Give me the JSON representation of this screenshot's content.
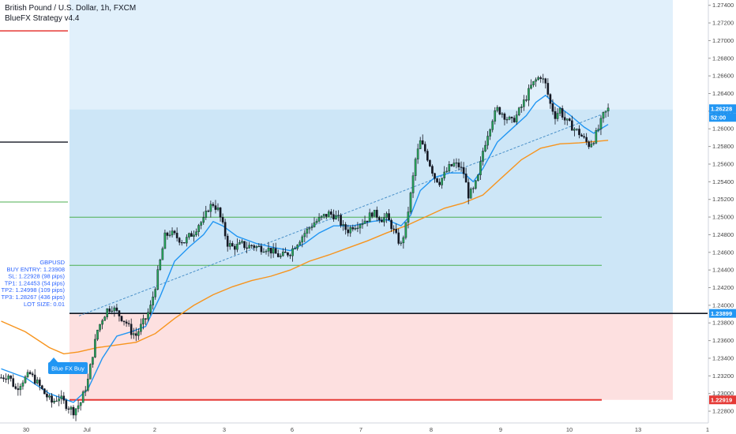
{
  "header": {
    "symbol_line": "British Pound / U.S. Dollar, 1h, FXCM",
    "strategy": "BlueFX Strategy v4.4"
  },
  "colors": {
    "candle_up": "#26a65b",
    "candle_down": "#131722",
    "ema_fast": "#2196f3",
    "ema_slow": "#f7941d",
    "zone_profit": "#cde6f7",
    "zone_profit_top": "#e1f0fb",
    "zone_loss": "#fde0e0",
    "entry_line": "#131722",
    "sl_line": "#e53935",
    "tp_line": "#4caf50",
    "info_text": "#2962ff",
    "buy_label": "#2196f3"
  },
  "info_box": {
    "lines": [
      "GBPUSD",
      "BUY ENTRY: 1.23908",
      "SL: 1.22928 (98 pips)",
      "TP1: 1.24453 (54 pips)",
      "TP2: 1.24998 (109 pips)",
      "TP3: 1.28267 (436 pips)",
      "LOT SIZE: 0.01"
    ]
  },
  "buy_label": "Blue FX Buy",
  "price_tags": {
    "current": "1.26228",
    "countdown": "52:00",
    "entry": "1.23899",
    "stop": "1.22919"
  },
  "chart_data": {
    "type": "candlestick",
    "title": "British Pound / U.S. Dollar, 1h, FXCM",
    "ylim": [
      1.2272,
      1.2746
    ],
    "y_ticks": [
      "1.22800",
      "1.23000",
      "1.23200",
      "1.23400",
      "1.23600",
      "1.23800",
      "1.24000",
      "1.24200",
      "1.24400",
      "1.24600",
      "1.24800",
      "1.25000",
      "1.25200",
      "1.25400",
      "1.25600",
      "1.25800",
      "1.26000",
      "1.26200",
      "1.26400",
      "1.26600",
      "1.26800",
      "1.27000",
      "1.27200",
      "1.27400"
    ],
    "x_tick_labels": [
      "30",
      "Jul",
      "2",
      "3",
      "6",
      "7",
      "8",
      "9",
      "10",
      "13",
      "1"
    ],
    "levels": {
      "entry": 1.23908,
      "stop_loss": 1.22928,
      "tp1": 1.24453,
      "tp2": 1.24998,
      "tp3": 1.28267,
      "left_red": 1.2711,
      "left_black": 1.2585,
      "left_green": 1.2517
    },
    "price_path": [
      [
        0,
        1.2318
      ],
      [
        3,
        1.2321
      ],
      [
        6,
        1.2305
      ],
      [
        9,
        1.2315
      ],
      [
        12,
        1.2322
      ],
      [
        15,
        1.2312
      ],
      [
        18,
        1.23
      ],
      [
        21,
        1.229
      ],
      [
        24,
        1.2296
      ],
      [
        27,
        1.2287
      ],
      [
        30,
        1.228
      ],
      [
        33,
        1.229
      ],
      [
        36,
        1.2315
      ],
      [
        38,
        1.2345
      ],
      [
        40,
        1.2372
      ],
      [
        42,
        1.2385
      ],
      [
        44,
        1.2395
      ],
      [
        46,
        1.2398
      ],
      [
        48,
        1.2392
      ],
      [
        50,
        1.2386
      ],
      [
        52,
        1.238
      ],
      [
        54,
        1.237
      ],
      [
        56,
        1.2366
      ],
      [
        58,
        1.2376
      ],
      [
        60,
        1.2385
      ],
      [
        62,
        1.2398
      ],
      [
        64,
        1.2422
      ],
      [
        66,
        1.245
      ],
      [
        68,
        1.2478
      ],
      [
        70,
        1.2482
      ],
      [
        72,
        1.2479
      ],
      [
        74,
        1.2475
      ],
      [
        76,
        1.2472
      ],
      [
        78,
        1.2478
      ],
      [
        80,
        1.2483
      ],
      [
        82,
        1.2492
      ],
      [
        84,
        1.2496
      ],
      [
        86,
        1.251
      ],
      [
        88,
        1.2515
      ],
      [
        90,
        1.2508
      ],
      [
        92,
        1.249
      ],
      [
        94,
        1.247
      ],
      [
        96,
        1.2466
      ],
      [
        98,
        1.2467
      ],
      [
        100,
        1.2469
      ],
      [
        102,
        1.2466
      ],
      [
        104,
        1.2468
      ],
      [
        106,
        1.2466
      ],
      [
        108,
        1.2465
      ],
      [
        110,
        1.2465
      ],
      [
        112,
        1.2462
      ],
      [
        114,
        1.2458
      ],
      [
        116,
        1.2455
      ],
      [
        118,
        1.2458
      ],
      [
        120,
        1.246
      ],
      [
        122,
        1.2468
      ],
      [
        124,
        1.2475
      ],
      [
        126,
        1.2482
      ],
      [
        128,
        1.2488
      ],
      [
        130,
        1.2494
      ],
      [
        132,
        1.2497
      ],
      [
        134,
        1.2501
      ],
      [
        136,
        1.2504
      ],
      [
        138,
        1.2502
      ],
      [
        140,
        1.2498
      ],
      [
        142,
        1.2488
      ],
      [
        144,
        1.2485
      ],
      [
        146,
        1.249
      ],
      [
        148,
        1.2492
      ],
      [
        150,
        1.2495
      ],
      [
        152,
        1.2498
      ],
      [
        154,
        1.2505
      ],
      [
        156,
        1.2502
      ],
      [
        158,
        1.2498
      ],
      [
        160,
        1.25
      ],
      [
        162,
        1.249
      ],
      [
        164,
        1.2478
      ],
      [
        166,
        1.2468
      ],
      [
        168,
        1.249
      ],
      [
        170,
        1.2525
      ],
      [
        172,
        1.2565
      ],
      [
        174,
        1.2585
      ],
      [
        176,
        1.2575
      ],
      [
        178,
        1.256
      ],
      [
        180,
        1.2545
      ],
      [
        182,
        1.254
      ],
      [
        184,
        1.2548
      ],
      [
        186,
        1.2556
      ],
      [
        188,
        1.256
      ],
      [
        190,
        1.2558
      ],
      [
        192,
        1.255
      ],
      [
        194,
        1.2525
      ],
      [
        196,
        1.253
      ],
      [
        198,
        1.2545
      ],
      [
        200,
        1.2575
      ],
      [
        202,
        1.2595
      ],
      [
        204,
        1.2612
      ],
      [
        206,
        1.2622
      ],
      [
        208,
        1.2618
      ],
      [
        210,
        1.2612
      ],
      [
        212,
        1.2608
      ],
      [
        214,
        1.2615
      ],
      [
        216,
        1.2625
      ],
      [
        218,
        1.2636
      ],
      [
        220,
        1.2648
      ],
      [
        222,
        1.2655
      ],
      [
        224,
        1.266
      ],
      [
        226,
        1.265
      ],
      [
        228,
        1.2628
      ],
      [
        230,
        1.2615
      ],
      [
        232,
        1.2622
      ],
      [
        234,
        1.261
      ],
      [
        236,
        1.2605
      ],
      [
        238,
        1.26
      ],
      [
        240,
        1.2595
      ],
      [
        242,
        1.2588
      ],
      [
        244,
        1.2582
      ],
      [
        246,
        1.2588
      ],
      [
        248,
        1.26
      ],
      [
        250,
        1.2615
      ],
      [
        252,
        1.2622
      ]
    ],
    "ema_fast": [
      [
        0,
        1.2328
      ],
      [
        10,
        1.2318
      ],
      [
        20,
        1.23
      ],
      [
        30,
        1.229
      ],
      [
        36,
        1.2305
      ],
      [
        42,
        1.234
      ],
      [
        48,
        1.2365
      ],
      [
        54,
        1.237
      ],
      [
        60,
        1.2376
      ],
      [
        66,
        1.241
      ],
      [
        72,
        1.245
      ],
      [
        78,
        1.2466
      ],
      [
        84,
        1.248
      ],
      [
        88,
        1.2495
      ],
      [
        92,
        1.249
      ],
      [
        98,
        1.2478
      ],
      [
        106,
        1.247
      ],
      [
        114,
        1.2465
      ],
      [
        120,
        1.2462
      ],
      [
        126,
        1.247
      ],
      [
        132,
        1.2482
      ],
      [
        138,
        1.249
      ],
      [
        146,
        1.249
      ],
      [
        154,
        1.2495
      ],
      [
        160,
        1.2497
      ],
      [
        166,
        1.249
      ],
      [
        170,
        1.2502
      ],
      [
        174,
        1.253
      ],
      [
        180,
        1.2545
      ],
      [
        186,
        1.255
      ],
      [
        192,
        1.255
      ],
      [
        196,
        1.254
      ],
      [
        200,
        1.2555
      ],
      [
        206,
        1.2585
      ],
      [
        212,
        1.26
      ],
      [
        218,
        1.2615
      ],
      [
        222,
        1.263
      ],
      [
        226,
        1.2638
      ],
      [
        230,
        1.2628
      ],
      [
        236,
        1.2616
      ],
      [
        242,
        1.2602
      ],
      [
        246,
        1.2595
      ],
      [
        252,
        1.2605
      ]
    ],
    "ema_slow": [
      [
        0,
        1.2382
      ],
      [
        10,
        1.237
      ],
      [
        20,
        1.2352
      ],
      [
        26,
        1.2345
      ],
      [
        32,
        1.2347
      ],
      [
        40,
        1.2352
      ],
      [
        48,
        1.2355
      ],
      [
        56,
        1.2358
      ],
      [
        64,
        1.2368
      ],
      [
        72,
        1.2385
      ],
      [
        80,
        1.24
      ],
      [
        88,
        1.2412
      ],
      [
        96,
        1.2421
      ],
      [
        104,
        1.2428
      ],
      [
        112,
        1.2433
      ],
      [
        120,
        1.244
      ],
      [
        128,
        1.245
      ],
      [
        136,
        1.2457
      ],
      [
        144,
        1.2465
      ],
      [
        152,
        1.2473
      ],
      [
        160,
        1.2482
      ],
      [
        168,
        1.249
      ],
      [
        176,
        1.25
      ],
      [
        184,
        1.251
      ],
      [
        192,
        1.2516
      ],
      [
        200,
        1.2525
      ],
      [
        208,
        1.2545
      ],
      [
        216,
        1.2565
      ],
      [
        224,
        1.2578
      ],
      [
        232,
        1.2583
      ],
      [
        240,
        1.2584
      ],
      [
        248,
        1.2586
      ],
      [
        252,
        1.2587
      ]
    ]
  }
}
